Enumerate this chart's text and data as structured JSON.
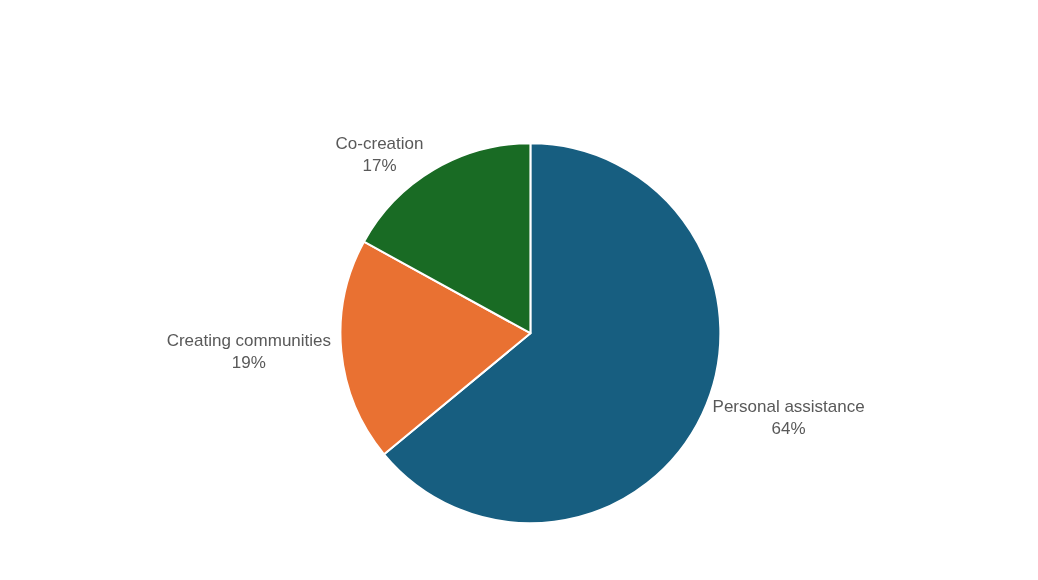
{
  "chart_data": {
    "type": "pie",
    "categories": [
      "Personal assistance",
      "Creating communities",
      "Co-creation"
    ],
    "values": [
      64,
      19,
      17
    ],
    "value_labels": [
      "64%",
      "19%",
      "17%"
    ],
    "colors": [
      "#175e80",
      "#e97132",
      "#196b24"
    ],
    "legend": false
  }
}
